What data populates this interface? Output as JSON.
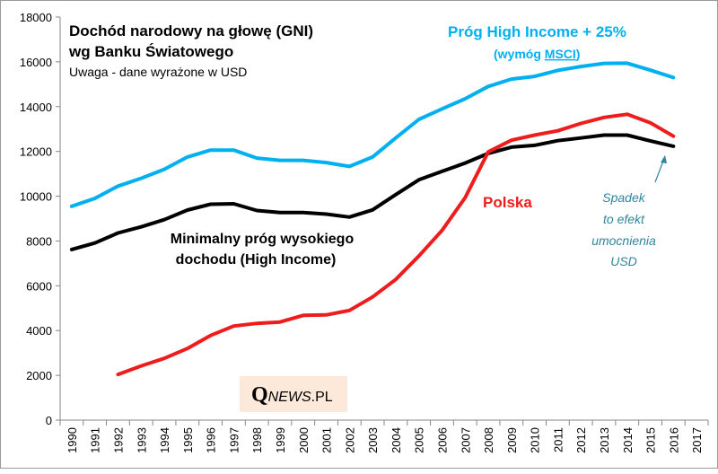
{
  "chart_data": {
    "type": "line",
    "title": "Dochód narodowy na głowę (GNI)",
    "title_line2": "wg Banku Światowego",
    "subtitle": "Uwaga - dane wyrażone w USD",
    "ylim": [
      0,
      18000
    ],
    "yticks": [
      "0",
      "2000",
      "4000",
      "6000",
      "8000",
      "10000",
      "12000",
      "14000",
      "16000",
      "18000"
    ],
    "categories": [
      "1990",
      "1991",
      "1992",
      "1993",
      "1994",
      "1995",
      "1996",
      "1997",
      "1998",
      "1999",
      "2000",
      "2001",
      "2002",
      "2003",
      "2004",
      "2005",
      "2006",
      "2007",
      "2008",
      "2009",
      "2010",
      "2011",
      "2012",
      "2013",
      "2014",
      "2015",
      "2016",
      "2017"
    ],
    "series": [
      {
        "name": "Próg High Income + 25%",
        "color": "#00b0f0",
        "values": [
          9550,
          9900,
          10450,
          10800,
          11200,
          11750,
          12060,
          12060,
          11700,
          11600,
          11600,
          11500,
          11330,
          11750,
          12600,
          13430,
          13900,
          14350,
          14900,
          15230,
          15350,
          15620,
          15790,
          15930,
          15940,
          15630,
          15300,
          null
        ]
      },
      {
        "name": "Minimalny próg wysokiego dochodu (High Income)",
        "color": "#000000",
        "values": [
          7620,
          7910,
          8360,
          8630,
          8950,
          9380,
          9640,
          9660,
          9360,
          9270,
          9270,
          9200,
          9070,
          9390,
          10070,
          10730,
          11110,
          11480,
          11910,
          12190,
          12270,
          12480,
          12600,
          12730,
          12730,
          12470,
          12230,
          null
        ]
      },
      {
        "name": "Polska",
        "color": "#ee1c1c",
        "values": [
          null,
          null,
          2040,
          2420,
          2760,
          3200,
          3780,
          4200,
          4320,
          4380,
          4680,
          4700,
          4900,
          5500,
          6280,
          7330,
          8470,
          9940,
          11980,
          12500,
          12730,
          12920,
          13250,
          13520,
          13660,
          13280,
          12680,
          null
        ]
      }
    ],
    "annotations": {
      "blue_label": "Próg High Income + 25%",
      "blue_sub_prefix": "(wymóg ",
      "blue_sub_link": "MSCI",
      "blue_sub_suffix": ")",
      "black_label_line1": "Minimalny próg wysokiego",
      "black_label_line2": "dochodu  (High Income)",
      "red_label": "Polska",
      "note_lines": [
        "Spadek",
        "to efekt",
        "umocnienia",
        "USD"
      ]
    },
    "watermark": {
      "initial": "Q",
      "rest": "NEWS",
      "suffix": ".PL"
    }
  },
  "colors": {
    "note": "#31859c",
    "watermark_bg": "#fde9d9",
    "grid": "#d9d9d9"
  }
}
